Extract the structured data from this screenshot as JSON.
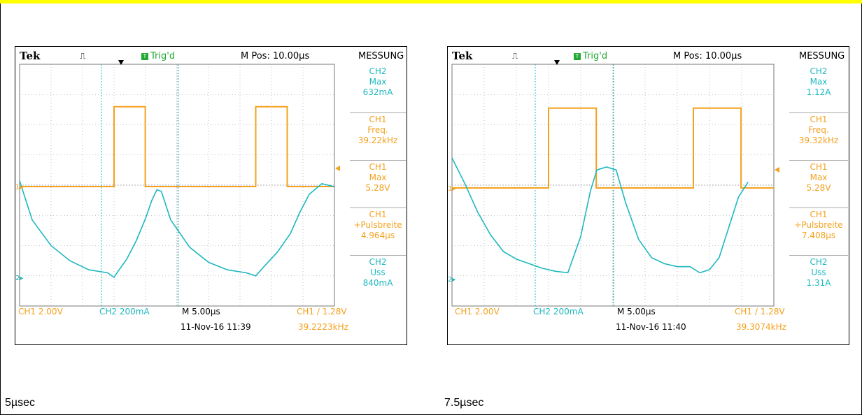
{
  "panels": [
    {
      "caption": "5µsec",
      "header": {
        "brand": "Tek",
        "trig_status": "Trig'd",
        "trig_icon": "T",
        "mpos": "M Pos: 10.00µs",
        "menu_title": "MESSUNG"
      },
      "measurements": [
        {
          "channel": "CH2",
          "name": "Max",
          "value": "632mA",
          "color": "cyan"
        },
        {
          "channel": "CH1",
          "name": "Freq.",
          "value": "39.22kHz",
          "color": "orange"
        },
        {
          "channel": "CH1",
          "name": "Max",
          "value": "5.28V",
          "color": "orange"
        },
        {
          "channel": "CH1",
          "name": "+Pulsbreite",
          "value": "4.964µs",
          "color": "orange"
        },
        {
          "channel": "CH2",
          "name": "Uss",
          "value": "840mA",
          "color": "cyan"
        }
      ],
      "footer": {
        "ch1_scale": "CH1  2.00V",
        "ch2_scale": "CH2  200mA",
        "timebase": "M 5.00µs",
        "trigger": "CH1 ∕ 1.28V",
        "datetime": "11-Nov-16 11:39",
        "trig_freq": "39.2223kHz"
      },
      "markers": {
        "ch1": "1",
        "ch2": "2"
      }
    },
    {
      "caption": "7.5µsec",
      "header": {
        "brand": "Tek",
        "trig_status": "Trig'd",
        "trig_icon": "T",
        "mpos": "M Pos: 10.00µs",
        "menu_title": "MESSUNG"
      },
      "measurements": [
        {
          "channel": "CH2",
          "name": "Max",
          "value": "1.12A",
          "color": "cyan"
        },
        {
          "channel": "CH1",
          "name": "Freq.",
          "value": "39.32kHz",
          "color": "orange"
        },
        {
          "channel": "CH1",
          "name": "Max",
          "value": "5.28V",
          "color": "orange"
        },
        {
          "channel": "CH1",
          "name": "+Pulsbreite",
          "value": "7.408µs",
          "color": "orange"
        },
        {
          "channel": "CH2",
          "name": "Uss",
          "value": "1.31A",
          "color": "cyan"
        }
      ],
      "footer": {
        "ch1_scale": "CH1  2.00V",
        "ch2_scale": "CH2  200mA",
        "timebase": "M 5.00µs",
        "trigger": "CH1 ∕ 1.28V",
        "datetime": "11-Nov-16 11:40",
        "trig_freq": "39.3074kHz"
      },
      "markers": {
        "ch1": "1",
        "ch2": "2"
      }
    }
  ],
  "colors": {
    "ch1": "#f4a11e",
    "ch2": "#1db8c0",
    "grid": "#9a9a9a",
    "trig_green": "#21a832"
  },
  "chart_data": [
    {
      "type": "line",
      "title": "",
      "xlabel": "",
      "ylabel": "",
      "x_unit": "µs",
      "xlim": [
        -15,
        35
      ],
      "timebase_us_per_div": 5,
      "series": [
        {
          "name": "CH1",
          "unit": "V",
          "volts_per_div": 2.0,
          "x": [
            -15,
            0,
            0,
            4.96,
            4.96,
            22.5,
            22.5,
            27.5,
            27.5,
            35
          ],
          "y": [
            0,
            0,
            5.28,
            5.28,
            0,
            0,
            5.28,
            5.28,
            0,
            0
          ]
        },
        {
          "name": "CH2",
          "unit": "mA",
          "ma_per_div": 200,
          "x": [
            -15,
            -13,
            -10,
            -7,
            -4,
            -1,
            0,
            0.3,
            2,
            3.5,
            5,
            6,
            6.8,
            7.5,
            9,
            12,
            15,
            18,
            21,
            22.5,
            24,
            26,
            28,
            29.5,
            31,
            33,
            35
          ],
          "y": [
            0,
            -260,
            -430,
            -530,
            -590,
            -610,
            -640,
            -620,
            -520,
            -400,
            -250,
            -130,
            -60,
            -70,
            -260,
            -440,
            -540,
            -590,
            -610,
            -630,
            -560,
            -470,
            -350,
            -210,
            -90,
            -20,
            -40
          ]
        }
      ]
    },
    {
      "type": "line",
      "title": "",
      "xlabel": "",
      "ylabel": "",
      "x_unit": "µs",
      "xlim": [
        -15,
        35
      ],
      "timebase_us_per_div": 5,
      "series": [
        {
          "name": "CH1",
          "unit": "V",
          "volts_per_div": 2.0,
          "x": [
            -15,
            0,
            0,
            7.41,
            7.41,
            22.5,
            22.5,
            29.9,
            29.9,
            35
          ],
          "y": [
            0,
            0,
            5.28,
            5.28,
            0,
            0,
            5.28,
            5.28,
            0,
            0
          ]
        },
        {
          "name": "CH2",
          "unit": "mA",
          "ma_per_div": 200,
          "x": [
            -15,
            -13,
            -11,
            -9,
            -7,
            -5,
            -3,
            -1,
            1,
            3,
            5,
            6.5,
            7.5,
            9,
            10.5,
            12,
            14,
            16,
            18,
            20,
            22,
            23.5,
            25,
            26.5,
            28,
            29.5,
            31
          ],
          "y": [
            160,
            -10,
            -200,
            -350,
            -460,
            -510,
            -540,
            -570,
            -590,
            -600,
            -360,
            -60,
            80,
            100,
            80,
            -140,
            -380,
            -500,
            -540,
            -560,
            -560,
            -600,
            -580,
            -500,
            -300,
            -100,
            0
          ]
        }
      ]
    }
  ]
}
